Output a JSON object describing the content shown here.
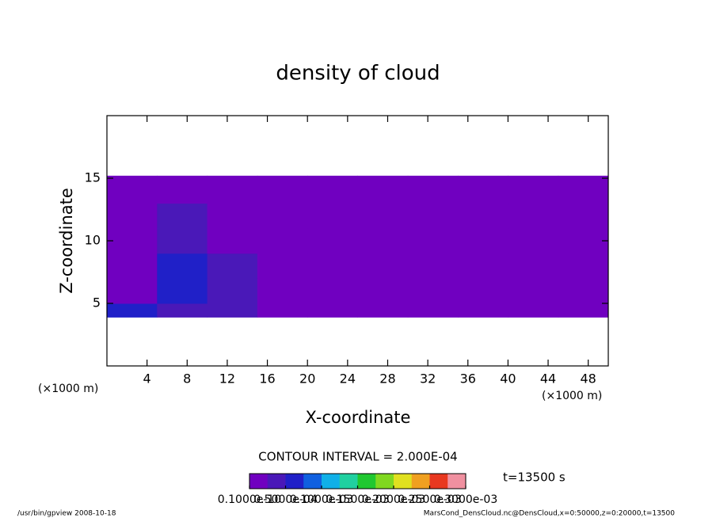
{
  "chart_data": {
    "type": "contour",
    "title": "density of cloud",
    "x_label": "X-coordinate",
    "y_label": "Z-coordinate",
    "x_unit_label": "(×1000 m)",
    "y_unit_label": "(×1000 m)",
    "xlim": [
      0,
      50
    ],
    "ylim": [
      0,
      20
    ],
    "xticks": [
      4,
      8,
      12,
      16,
      20,
      24,
      28,
      32,
      36,
      40,
      44,
      48
    ],
    "yticks": [
      5,
      10,
      15
    ],
    "field": {
      "x_edges": [
        0,
        5,
        10,
        15,
        20,
        25,
        30,
        35,
        40,
        45,
        50
      ],
      "z_edges": [
        3.9,
        5,
        7,
        9,
        11,
        13,
        15.2
      ],
      "values": [
        [
          6e-05,
          4e-05,
          3e-05,
          2e-05,
          2e-05,
          1e-05,
          1e-05,
          2e-05,
          2e-05,
          1e-05
        ],
        [
          2e-05,
          6e-05,
          4e-05,
          1e-05,
          1e-05,
          1e-05,
          2e-05,
          2e-05,
          1e-05,
          1e-05
        ],
        [
          1e-05,
          6e-05,
          3e-05,
          1e-05,
          1e-05,
          1e-05,
          1e-05,
          1e-05,
          1e-05,
          1e-05
        ],
        [
          1e-05,
          3e-05,
          2e-05,
          1e-05,
          1e-05,
          1e-05,
          1e-05,
          1e-05,
          1e-05,
          1e-05
        ],
        [
          1e-05,
          3e-05,
          1e-05,
          1e-05,
          1e-05,
          1e-05,
          1e-05,
          1e-05,
          1e-05,
          1e-05
        ],
        [
          1e-05,
          2e-05,
          1e-05,
          1e-05,
          1e-05,
          1e-05,
          1e-05,
          1e-05,
          1e-05,
          1e-05
        ]
      ]
    },
    "clim": [
      0,
      0.0003
    ],
    "colormap": [
      "#7000c0",
      "#4a18b8",
      "#2020c8",
      "#1060e0",
      "#10b0e8",
      "#20d0a0",
      "#20c830",
      "#80d820",
      "#e0e020",
      "#f0a020",
      "#e83820",
      "#f090a0"
    ],
    "contour_interval": "CONTOUR INTERVAL = 2.000E-04",
    "colorbar_ticks": [
      {
        "value": 1e-11,
        "label": "0.1000e-10"
      },
      {
        "value": 5e-05,
        "label": "0.5000e-04"
      },
      {
        "value": 0.0001,
        "label": "0.1000e-03"
      },
      {
        "value": 0.00015,
        "label": "0.1500e-03"
      },
      {
        "value": 0.0002,
        "label": "0.2000e-03"
      },
      {
        "value": 0.00025,
        "label": "0.2500e-03"
      },
      {
        "value": 0.0003,
        "label": "0.3000e-03"
      }
    ],
    "time_label": "t=13500 s",
    "footer_left": "/usr/bin/gpview   2008-10-18",
    "footer_right": "MarsCond_DensCloud.nc@DensCloud,x=0:50000,z=0:20000,t=13500"
  }
}
